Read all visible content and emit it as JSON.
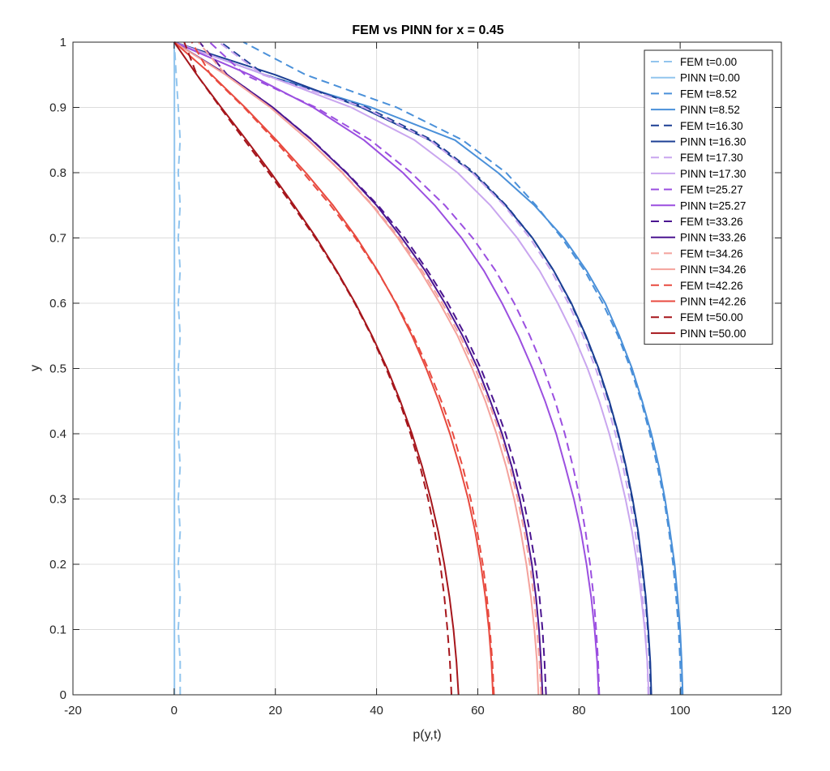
{
  "chart_data": {
    "type": "line",
    "title": "FEM vs PINN for x = 0.45",
    "xlabel": "p(y,t)",
    "ylabel": "y",
    "xlim": [
      -20,
      120
    ],
    "ylim": [
      0,
      1
    ],
    "xticks": [
      "-20",
      "0",
      "20",
      "40",
      "60",
      "80",
      "100",
      "120"
    ],
    "yticks": [
      "0",
      "0.1",
      "0.2",
      "0.3",
      "0.4",
      "0.5",
      "0.6",
      "0.7",
      "0.8",
      "0.9",
      "1"
    ],
    "grid": true,
    "legend_position": "top-right",
    "y": [
      0,
      0.05,
      0.1,
      0.15,
      0.2,
      0.25,
      0.3,
      0.35,
      0.4,
      0.45,
      0.5,
      0.55,
      0.6,
      0.65,
      0.7,
      0.75,
      0.8,
      0.85,
      0.9,
      0.95,
      1
    ],
    "series": [
      {
        "name": "FEM t=0.00",
        "style": "dashed",
        "color": "#92c5ee",
        "x": [
          1.2,
          1.2,
          0.8,
          1.2,
          0.8,
          1.2,
          0.8,
          1.2,
          0.8,
          1.2,
          0.8,
          1.2,
          0.8,
          1.2,
          0.8,
          1.2,
          0.8,
          1.2,
          0.8,
          0.4,
          0
        ]
      },
      {
        "name": "PINN t=0.00",
        "style": "solid",
        "color": "#92c5ee",
        "x": [
          0.05,
          0.05,
          0.05,
          0.05,
          0.05,
          0.05,
          0.05,
          0.05,
          0.05,
          0.05,
          0.05,
          0.05,
          0.05,
          0.05,
          0.05,
          0.05,
          0.05,
          0.05,
          0.05,
          0.05,
          0
        ]
      },
      {
        "name": "FEM t=8.52",
        "style": "dashed",
        "color": "#4a90d9",
        "x": [
          100.2,
          100,
          99.7,
          99.2,
          98.6,
          97.8,
          96.8,
          95.5,
          94,
          92.3,
          90.2,
          87.7,
          84.7,
          81.1,
          76.6,
          71.5,
          65.6,
          57,
          44,
          26,
          13.7
        ]
      },
      {
        "name": "PINN t=8.52",
        "style": "solid",
        "color": "#4a90d9",
        "x": [
          100.5,
          100.3,
          100,
          99.5,
          98.9,
          98,
          97,
          95.8,
          94.3,
          92.5,
          90.5,
          88,
          85.2,
          81.5,
          77,
          71.2,
          64,
          55.5,
          39,
          18,
          0
        ]
      },
      {
        "name": "FEM t=16.30",
        "style": "dashed",
        "color": "#1c3f94",
        "x": [
          94.2,
          94,
          93.6,
          93.1,
          92.4,
          91.6,
          90.5,
          89.2,
          87.7,
          85.9,
          83.8,
          81.3,
          78.4,
          75,
          70.8,
          65.6,
          59.3,
          51,
          38,
          18,
          9.2
        ]
      },
      {
        "name": "PINN t=16.30",
        "style": "solid",
        "color": "#1c3f94",
        "x": [
          94.3,
          94.1,
          93.7,
          93.2,
          92.5,
          91.7,
          90.6,
          89.3,
          87.8,
          86,
          83.9,
          81.4,
          78.5,
          75,
          70.8,
          65.5,
          59,
          50.5,
          37,
          20,
          0
        ]
      },
      {
        "name": "FEM t=17.30",
        "style": "dashed",
        "color": "#c9a6ef",
        "x": [
          93.7,
          93.5,
          93.1,
          92.6,
          91.9,
          91.1,
          90,
          88.7,
          87.2,
          85.4,
          83.3,
          80.8,
          77.9,
          74.5,
          70.3,
          65.2,
          58.9,
          50.5,
          37.5,
          17.5,
          8.8
        ]
      },
      {
        "name": "PINN t=17.30",
        "style": "solid",
        "color": "#c9a6ef",
        "x": [
          93.8,
          93.5,
          93,
          92.3,
          91.5,
          90.5,
          89.2,
          87.7,
          86,
          84,
          81.7,
          79,
          75.8,
          72.2,
          67.8,
          62.5,
          56,
          47.5,
          35,
          18,
          0
        ]
      },
      {
        "name": "FEM t=25.27",
        "style": "dashed",
        "color": "#9b4fe0",
        "x": [
          84,
          83.8,
          83.4,
          82.9,
          82.2,
          81.3,
          80.2,
          78.8,
          77.2,
          75.3,
          73,
          70.3,
          67.2,
          63.5,
          59,
          53.5,
          46.8,
          38.8,
          28,
          14,
          7
        ]
      },
      {
        "name": "PINN t=25.27",
        "style": "solid",
        "color": "#9b4fe0",
        "x": [
          83.9,
          83.6,
          83.1,
          82.4,
          81.5,
          80.4,
          79,
          77.3,
          75.5,
          73.3,
          70.8,
          68,
          64.8,
          61.2,
          56.8,
          51.5,
          45.2,
          37.5,
          27.5,
          15,
          0
        ]
      },
      {
        "name": "FEM t=33.26",
        "style": "dashed",
        "color": "#4b1590",
        "x": [
          73.5,
          73.2,
          72.8,
          72.2,
          71.4,
          70.3,
          69,
          67.4,
          65.5,
          63.2,
          60.6,
          57.6,
          54.1,
          50.1,
          45.6,
          40.3,
          34.1,
          27.3,
          19.5,
          10.5,
          5
        ]
      },
      {
        "name": "PINN t=33.26",
        "style": "solid",
        "color": "#4b1590",
        "x": [
          72.8,
          72.5,
          72.1,
          71.5,
          70.7,
          69.6,
          68.3,
          66.7,
          64.8,
          62.5,
          60,
          57,
          53.5,
          49.6,
          45,
          40,
          34,
          27.2,
          19.5,
          10.5,
          0
        ]
      },
      {
        "name": "FEM t=34.26",
        "style": "dashed",
        "color": "#f4a29c",
        "x": [
          72.5,
          72.2,
          71.7,
          71.1,
          70.3,
          69.2,
          67.9,
          66.3,
          64.4,
          62.1,
          59.5,
          56.5,
          53,
          49,
          44.5,
          39.3,
          33.3,
          26.5,
          19,
          10.2,
          4.8
        ]
      },
      {
        "name": "PINN t=34.26",
        "style": "solid",
        "color": "#f4a29c",
        "x": [
          72,
          71.7,
          71.2,
          70.5,
          69.6,
          68.5,
          67.2,
          65.6,
          63.7,
          61.5,
          58.9,
          56,
          52.5,
          48.6,
          44.2,
          39.1,
          33.2,
          26.5,
          19,
          10.2,
          0
        ]
      },
      {
        "name": "FEM t=42.26",
        "style": "dashed",
        "color": "#e84a3f",
        "x": [
          63.2,
          62.9,
          62.4,
          61.8,
          61,
          59.9,
          58.6,
          57,
          55.1,
          52.8,
          50.2,
          47.3,
          43.9,
          40.1,
          35.8,
          30.9,
          25.5,
          19.8,
          13.8,
          7.2,
          3.5
        ]
      },
      {
        "name": "PINN t=42.26",
        "style": "solid",
        "color": "#e84a3f",
        "x": [
          63,
          62.7,
          62.2,
          61.5,
          60.6,
          59.5,
          58.1,
          56.4,
          54.5,
          52.3,
          49.8,
          47,
          43.8,
          40.2,
          36.1,
          31.4,
          26,
          20.2,
          14,
          7.4,
          0
        ]
      },
      {
        "name": "FEM t=50.00",
        "style": "dashed",
        "color": "#a6161c",
        "x": [
          54.8,
          54.5,
          54,
          53.4,
          52.6,
          51.5,
          50.2,
          48.6,
          46.7,
          44.5,
          41.9,
          39,
          35.7,
          32,
          27.9,
          23.4,
          18.7,
          13.9,
          9.1,
          4.5,
          2
        ]
      },
      {
        "name": "PINN t=50.00",
        "style": "solid",
        "color": "#a6161c",
        "x": [
          56.2,
          55.8,
          55.2,
          54.4,
          53.4,
          52.2,
          50.7,
          49,
          47,
          44.7,
          42.1,
          39.1,
          35.8,
          32.1,
          28.1,
          23.7,
          19.1,
          14.3,
          9.3,
          4.5,
          0
        ]
      }
    ]
  }
}
